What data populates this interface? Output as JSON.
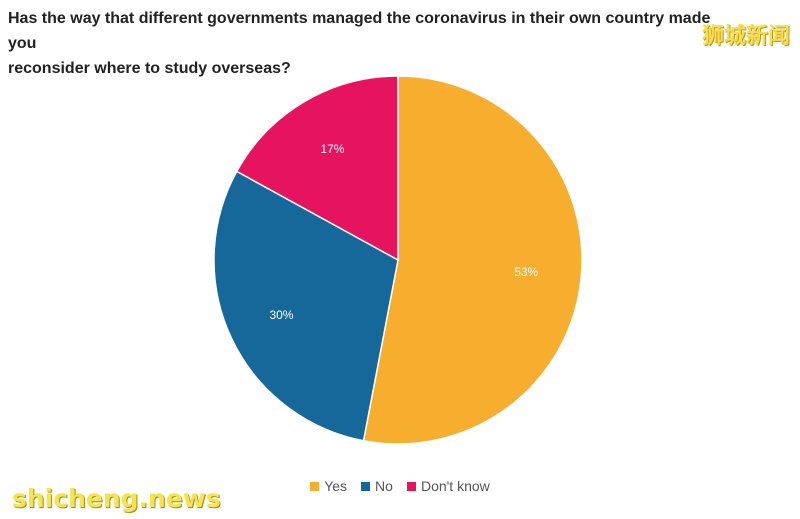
{
  "chart_data": {
    "type": "pie",
    "title_lines": [
      "Has the way that different governments managed the coronavirus in their own country made you",
      "reconsider where to study overseas?"
    ],
    "categories": [
      "Yes",
      "No",
      "Don't know"
    ],
    "values": [
      53,
      30,
      17
    ],
    "value_labels": [
      "53%",
      "30%",
      "17%"
    ],
    "colors": [
      "#F7AE2F",
      "#16679A",
      "#E6145F"
    ],
    "legend_position": "bottom",
    "start": "top, clockwise"
  },
  "watermarks": {
    "chinese": "狮城新闻",
    "site": "shicheng.news"
  }
}
